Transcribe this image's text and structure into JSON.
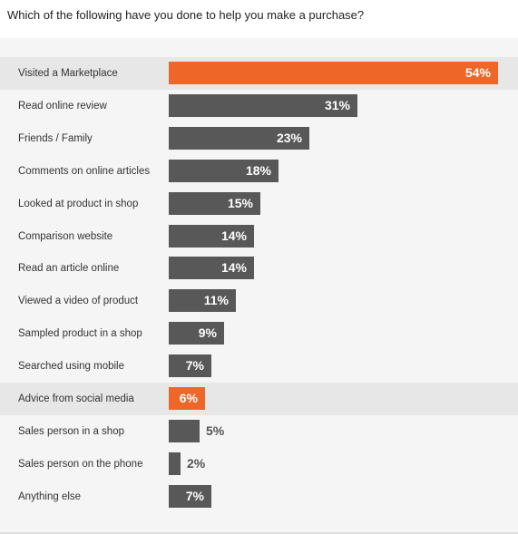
{
  "title": "Which of the following have you done to help you make a purchase?",
  "colors": {
    "accent": "#ee6728",
    "bar": "#585858",
    "highlight_row": "#e7e7e7",
    "panel": "#f5f5f5"
  },
  "chart_data": {
    "type": "bar",
    "orientation": "horizontal",
    "title": "Which of the following have you done to help you make a purchase?",
    "xlabel": "",
    "ylabel": "",
    "xlim": [
      0,
      54
    ],
    "grid": false,
    "value_suffix": "%",
    "categories": [
      "Visited a Marketplace",
      "Read online review",
      "Friends / Family",
      "Comments on online articles",
      "Looked at product in shop",
      "Comparison website",
      "Read an article online",
      "Viewed a video of product",
      "Sampled product in a shop",
      "Searched using mobile",
      "Advice from social media",
      "Sales person in a shop",
      "Sales person on the phone",
      "Anything else"
    ],
    "values": [
      54,
      31,
      23,
      18,
      15,
      14,
      14,
      11,
      9,
      7,
      6,
      5,
      2,
      7
    ],
    "value_labels": [
      "54%",
      "31%",
      "23%",
      "18%",
      "15%",
      "14%",
      "14%",
      "11%",
      "9%",
      "7%",
      "6%",
      "5%",
      "2%",
      "7%"
    ],
    "highlighted": [
      "Visited a Marketplace",
      "Advice from social media"
    ]
  }
}
